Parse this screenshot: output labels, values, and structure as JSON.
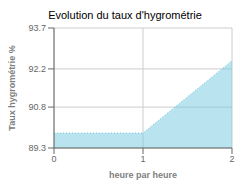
{
  "chart_data": {
    "type": "area",
    "title": "Evolution du taux d'hygrométrie",
    "xlabel": "heure par heure",
    "ylabel": "Taux hygrométrie %",
    "x": [
      0,
      1,
      2
    ],
    "values": [
      89.85,
      89.85,
      92.5
    ],
    "xlim": [
      0,
      2
    ],
    "ylim": [
      89.3,
      93.7
    ],
    "xticks": [
      0,
      1,
      2
    ],
    "yticks": [
      89.3,
      90.8,
      92.2,
      93.7
    ],
    "color": "#74c8de",
    "line_style": "dotted",
    "grid": true
  }
}
